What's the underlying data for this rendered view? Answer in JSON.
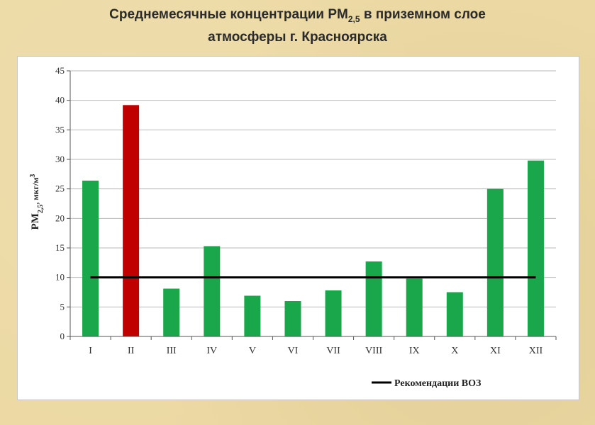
{
  "header": {
    "title_part1": "Среднемесячные концентрации PM",
    "title_sub": "2,5",
    "title_part2": " в приземном слое",
    "title_line2": "атмосферы г. Красноярска"
  },
  "chart_data": {
    "type": "bar",
    "title": "Среднемесячные концентрации PM2,5 в приземном слое атмосферы г. Красноярска",
    "ylabel_main": "PM",
    "ylabel_sub": "2,5",
    "ylabel_units": ", мкг/м",
    "ylabel_sup": "3",
    "categories": [
      "I",
      "II",
      "III",
      "IV",
      "V",
      "VI",
      "VII",
      "VIII",
      "IX",
      "X",
      "XI",
      "XII"
    ],
    "values": [
      26.4,
      39.2,
      8.1,
      15.3,
      6.9,
      6.0,
      7.8,
      12.7,
      9.8,
      7.5,
      25.0,
      29.8
    ],
    "bar_colors": [
      "#1aa64b",
      "#c00000",
      "#1aa64b",
      "#1aa64b",
      "#1aa64b",
      "#1aa64b",
      "#1aa64b",
      "#1aa64b",
      "#1aa64b",
      "#1aa64b",
      "#1aa64b",
      "#1aa64b"
    ],
    "yticks": [
      0,
      5,
      10,
      15,
      20,
      25,
      30,
      35,
      40,
      45
    ],
    "ylim": [
      0,
      45
    ],
    "grid": true,
    "reference_line": {
      "value": 10,
      "color": "#000000",
      "label": "Рекомендации ВОЗ"
    },
    "legend_placement": "bottom"
  }
}
